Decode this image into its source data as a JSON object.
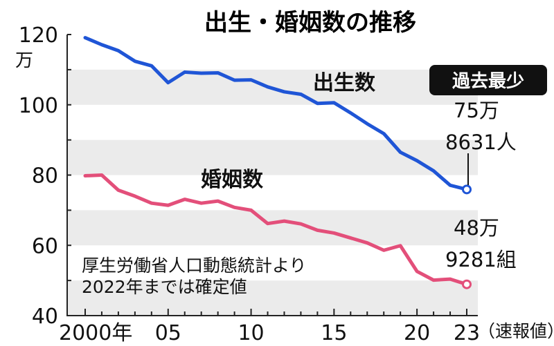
{
  "chart_data": {
    "type": "line",
    "title": "出生・婚姻数の推移",
    "ylabel_unit": "万",
    "ylim": [
      40,
      120
    ],
    "yticks": [
      "120",
      "100",
      "80",
      "60",
      "40"
    ],
    "xlim": [
      2000,
      2023
    ],
    "xtick_labels": [
      "2000年",
      "05",
      "10",
      "15",
      "20",
      "23"
    ],
    "x_note": "（速報値）",
    "grid": "alternating horizontal bands",
    "x": [
      2000,
      2001,
      2002,
      2003,
      2004,
      2005,
      2006,
      2007,
      2008,
      2009,
      2010,
      2011,
      2012,
      2013,
      2014,
      2015,
      2016,
      2017,
      2018,
      2019,
      2020,
      2021,
      2022,
      2023
    ],
    "series": [
      {
        "name": "出生数",
        "color": "#1f55d6",
        "values": [
          119.1,
          117.1,
          115.4,
          112.4,
          111.1,
          106.3,
          109.3,
          109.0,
          109.1,
          107.0,
          107.1,
          105.1,
          103.7,
          103.0,
          100.4,
          100.6,
          97.7,
          94.6,
          91.8,
          86.5,
          84.1,
          81.2,
          77.1,
          75.9
        ]
      },
      {
        "name": "婚姻数",
        "color": "#e34f7a",
        "values": [
          79.8,
          80.0,
          75.7,
          74.0,
          72.0,
          71.4,
          73.1,
          72.0,
          72.6,
          70.8,
          70.0,
          66.2,
          66.9,
          66.1,
          64.3,
          63.5,
          62.1,
          60.7,
          58.6,
          59.9,
          52.6,
          50.1,
          50.4,
          48.9
        ]
      }
    ],
    "badge": "過去最少",
    "annotations": {
      "birth_line1": "75万",
      "birth_line2": "8631人",
      "marriage_line1": "48万",
      "marriage_line2": "9281組"
    },
    "source_note_line1": "厚生労働省人口動態統計より",
    "source_note_line2": "2022年までは確定値"
  }
}
